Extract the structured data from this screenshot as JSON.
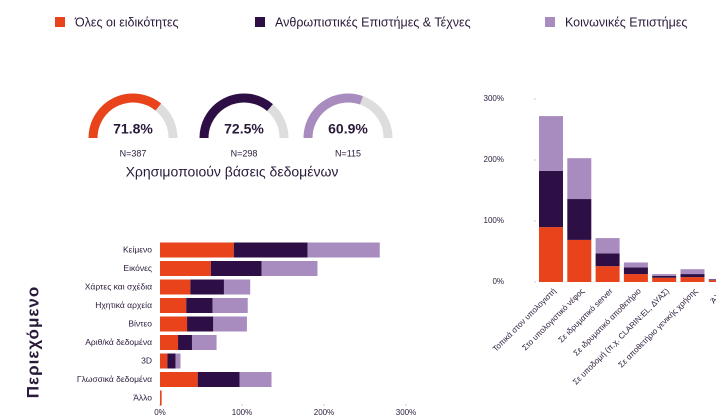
{
  "chart_data": [
    {
      "type": "gauge",
      "caption": "Χρησιμοποιούν βάσεις δεδομένων",
      "values": [
        71.8,
        72.5,
        60.9
      ],
      "value_labels": [
        "71.8%",
        "72.5%",
        "60.9%"
      ],
      "n_labels": [
        "N=387",
        "N=298",
        "N=115"
      ],
      "colors": [
        "#e8431a",
        "#2e0f45",
        "#a98cbf"
      ],
      "ylim": [
        0,
        100
      ]
    },
    {
      "type": "hbar",
      "axis_label": "Περιεχόμενο",
      "categories": [
        "Κείμενο",
        "Εικόνες",
        "Χάρτες και σχέδια",
        "Ηχητικά αρχεία",
        "Βίντεο",
        "Αριθ/κά δεδομένα",
        "3D",
        "Γλωσσικά δεδομένα",
        "Άλλο"
      ],
      "series": [
        {
          "name": "Όλες οι ειδικότητες",
          "color": "#e8431a",
          "values": [
            90,
            62,
            37,
            32,
            33,
            22,
            9,
            46,
            2
          ]
        },
        {
          "name": "Ανθρωπιστικές Επιστήμες & Τέχνες",
          "color": "#2e0f45",
          "values": [
            90,
            62,
            41,
            32,
            32,
            17,
            10,
            51,
            0
          ]
        },
        {
          "name": "Κοινωνικές Επιστήμες",
          "color": "#a98cbf",
          "values": [
            88,
            68,
            32,
            43,
            41,
            30,
            6,
            39,
            0
          ]
        }
      ],
      "xlim": [
        0,
        300
      ],
      "xticks": [
        {
          "value": 0,
          "label": "0%"
        },
        {
          "value": 100,
          "label": "100%"
        },
        {
          "value": 200,
          "label": "200%"
        },
        {
          "value": 300,
          "label": "300%"
        }
      ]
    },
    {
      "type": "vbar",
      "categories": [
        "Τοπικά στον υπολογιστή",
        "Στο υπολογιστικό νέφος",
        "Σε ιδρυματικό server",
        "Σε ιδρυματικό αποθετήριο",
        "Σε υποδομή (π.χ. CLARIN:EL, ΔΥΑΣ)",
        "Σε αποθετήριο γενικής χρήσης",
        "Άλλο"
      ],
      "series": [
        {
          "color": "#e8431a",
          "values": [
            90,
            69,
            26,
            13,
            7,
            8,
            3
          ]
        },
        {
          "color": "#2e0f45",
          "values": [
            92,
            67,
            21,
            11,
            3,
            5,
            1
          ]
        },
        {
          "color": "#a98cbf",
          "values": [
            90,
            67,
            25,
            8,
            3,
            8,
            1
          ]
        }
      ],
      "ylim": [
        0,
        300
      ],
      "yticks": [
        {
          "value": 0,
          "label": "0%"
        },
        {
          "value": 100,
          "label": "100%"
        },
        {
          "value": 200,
          "label": "200%"
        },
        {
          "value": 300,
          "label": "300%"
        }
      ]
    }
  ]
}
